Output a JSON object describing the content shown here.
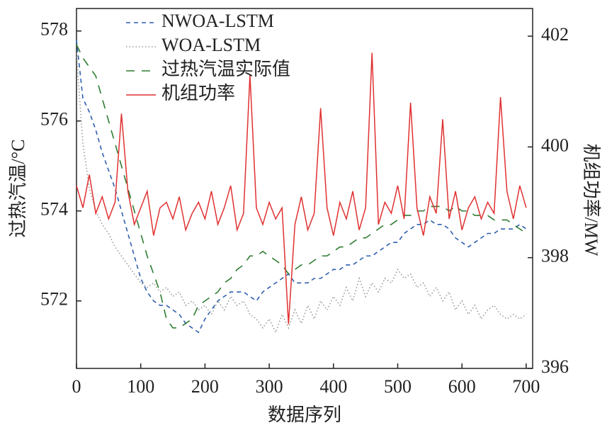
{
  "chart_data": {
    "type": "line",
    "xlabel": "数据序列",
    "ylabel": "过热汽温/°C",
    "y2label": "机组功率/MW",
    "x": [
      0,
      10,
      20,
      30,
      40,
      50,
      60,
      70,
      80,
      90,
      100,
      110,
      120,
      130,
      140,
      150,
      160,
      170,
      180,
      190,
      200,
      210,
      220,
      230,
      240,
      250,
      260,
      270,
      280,
      290,
      300,
      310,
      320,
      330,
      340,
      350,
      360,
      370,
      380,
      390,
      400,
      410,
      420,
      430,
      440,
      450,
      460,
      470,
      480,
      490,
      500,
      510,
      520,
      530,
      540,
      550,
      560,
      570,
      580,
      590,
      600,
      610,
      620,
      630,
      640,
      650,
      660,
      670,
      680,
      690,
      700
    ],
    "series": [
      {
        "name": "NWOA-LSTM",
        "color": "#2f5fae",
        "style": "dashed",
        "axis": "y",
        "values": [
          577.8,
          576.5,
          576.2,
          575.8,
          575.3,
          574.9,
          574.5,
          574.0,
          573.5,
          573.0,
          572.5,
          572.2,
          572.0,
          571.9,
          571.9,
          571.8,
          571.7,
          571.5,
          571.4,
          571.3,
          571.6,
          571.8,
          572.0,
          572.1,
          572.2,
          572.2,
          572.2,
          572.1,
          572.0,
          572.2,
          572.3,
          572.4,
          572.5,
          572.6,
          572.4,
          572.4,
          572.4,
          572.5,
          572.5,
          572.6,
          572.7,
          572.7,
          572.8,
          572.8,
          572.9,
          573.0,
          573.0,
          573.1,
          573.2,
          573.3,
          573.3,
          573.5,
          573.6,
          573.7,
          573.7,
          573.8,
          573.7,
          573.7,
          573.6,
          573.4,
          573.3,
          573.2,
          573.3,
          573.4,
          573.5,
          573.5,
          573.6,
          573.6,
          573.6,
          573.7,
          573.6
        ]
      },
      {
        "name": "WOA-LSTM",
        "color": "#999999",
        "style": "dotted",
        "axis": "y",
        "values": [
          577.5,
          575.5,
          574.5,
          574.0,
          573.7,
          573.5,
          573.2,
          573.0,
          572.8,
          572.6,
          572.4,
          572.3,
          572.4,
          572.2,
          572.3,
          572.1,
          572.2,
          571.9,
          572.0,
          571.8,
          571.9,
          571.7,
          572.0,
          571.8,
          572.1,
          571.9,
          572.0,
          571.7,
          571.6,
          571.4,
          571.6,
          571.3,
          571.7,
          571.4,
          571.8,
          571.5,
          571.9,
          571.6,
          572.0,
          571.8,
          572.1,
          571.9,
          572.3,
          572.0,
          572.5,
          572.1,
          572.4,
          572.2,
          572.5,
          572.4,
          572.7,
          572.5,
          572.6,
          572.3,
          572.4,
          572.1,
          572.3,
          572.0,
          572.2,
          571.8,
          572.0,
          571.7,
          571.9,
          571.6,
          571.8,
          571.9,
          571.7,
          571.6,
          571.7,
          571.6,
          571.7
        ]
      },
      {
        "name": "过热汽温实际值",
        "color": "#2e7d32",
        "style": "longdash",
        "axis": "y",
        "values": [
          577.7,
          577.4,
          577.2,
          577.0,
          576.5,
          576.0,
          575.5,
          575.0,
          574.5,
          574.0,
          573.5,
          573.0,
          572.6,
          572.2,
          571.6,
          571.4,
          571.4,
          571.5,
          571.6,
          571.9,
          572.0,
          572.1,
          572.2,
          572.4,
          572.5,
          572.7,
          572.8,
          573.0,
          573.0,
          573.1,
          573.0,
          572.9,
          572.8,
          572.6,
          572.7,
          572.8,
          572.8,
          572.9,
          573.0,
          573.0,
          573.1,
          573.2,
          573.2,
          573.3,
          573.4,
          573.4,
          573.5,
          573.6,
          573.7,
          573.7,
          573.8,
          573.9,
          573.9,
          574.0,
          574.0,
          574.1,
          574.1,
          574.1,
          574.0,
          574.1,
          574.0,
          574.0,
          573.9,
          573.9,
          573.9,
          573.8,
          573.8,
          573.8,
          573.7,
          573.6,
          573.5
        ]
      },
      {
        "name": "机组功率",
        "color": "#e03030",
        "style": "solid",
        "axis": "y2",
        "values": [
          399.3,
          398.9,
          399.5,
          398.8,
          399.1,
          398.7,
          399.0,
          400.6,
          399.2,
          398.6,
          398.9,
          399.2,
          398.4,
          398.9,
          399.0,
          398.7,
          399.1,
          398.5,
          398.8,
          399.0,
          398.7,
          399.2,
          398.6,
          398.9,
          399.3,
          398.5,
          398.8,
          401.3,
          398.9,
          398.6,
          399.0,
          398.7,
          398.9,
          396.8,
          398.6,
          399.1,
          398.5,
          398.8,
          400.7,
          398.9,
          398.4,
          399.0,
          398.7,
          399.2,
          398.5,
          398.9,
          401.7,
          398.6,
          399.0,
          398.8,
          399.3,
          398.7,
          400.8,
          398.9,
          398.4,
          399.1,
          398.8,
          400.5,
          398.7,
          399.2,
          398.5,
          398.9,
          399.1,
          398.7,
          399.0,
          398.8,
          400.9,
          399.2,
          398.7,
          399.3,
          398.9
        ]
      }
    ],
    "xlim": [
      0,
      710
    ],
    "xticks": [
      0,
      100,
      200,
      300,
      400,
      500,
      600,
      700
    ],
    "ylim": [
      570.5,
      578.5
    ],
    "yticks": [
      572,
      574,
      576,
      578
    ],
    "y2lim": [
      396,
      402.5
    ],
    "y2ticks": [
      396,
      398,
      400,
      402
    ],
    "legend": "upper left"
  }
}
